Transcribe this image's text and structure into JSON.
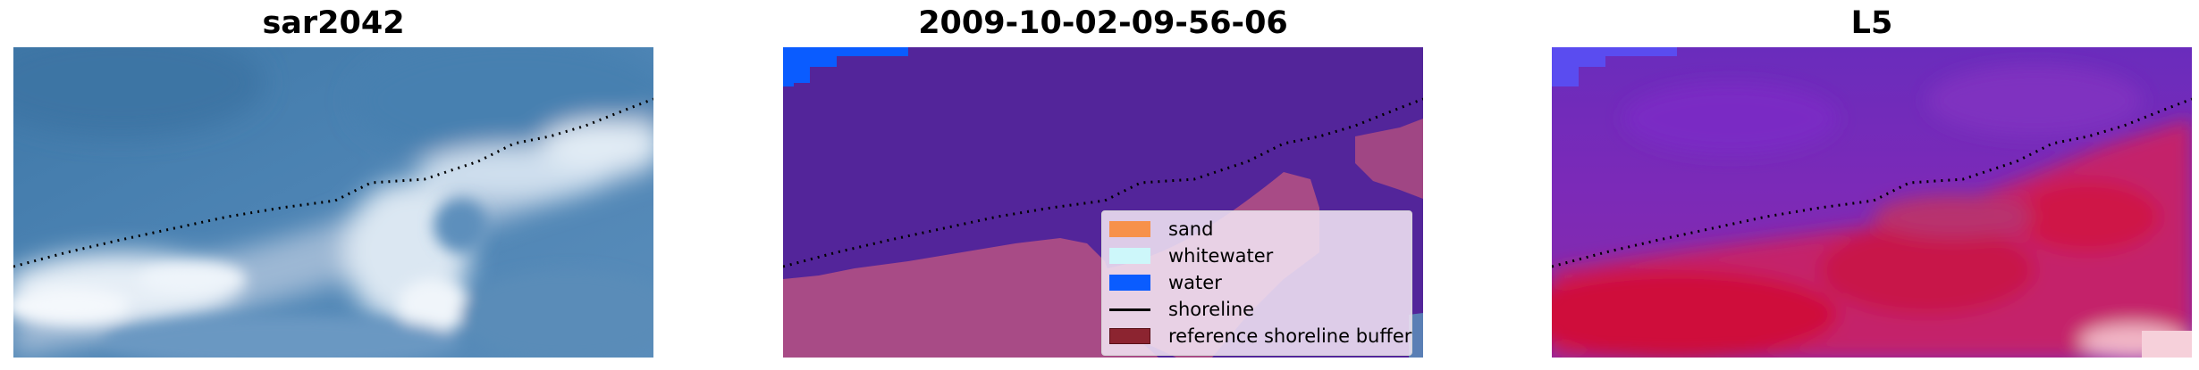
{
  "panels": [
    {
      "title": "sar2042"
    },
    {
      "title": "2009-10-02-09-56-06"
    },
    {
      "title": "L5"
    }
  ],
  "legend": {
    "items": [
      {
        "label": "sand",
        "color": "#f7914a",
        "kind": "patch"
      },
      {
        "label": "whitewater",
        "color": "#cdf7fa",
        "kind": "patch"
      },
      {
        "label": "water",
        "color": "#0a5cff",
        "kind": "patch"
      },
      {
        "label": "shoreline",
        "color": "#000000",
        "kind": "line"
      },
      {
        "label": "reference shoreline buffer",
        "color": "#8c2430",
        "kind": "patch"
      }
    ]
  },
  "colors": {
    "rgb_water": "#4a7fb0",
    "rgb_surf": "#d8e6f2",
    "class_water": "#53259a",
    "class_shore_zone": "#a8487f",
    "class_water_patch": "#0a5cff",
    "ndwi_water": "#6a28b8",
    "ndwi_land": "#c8103a"
  }
}
